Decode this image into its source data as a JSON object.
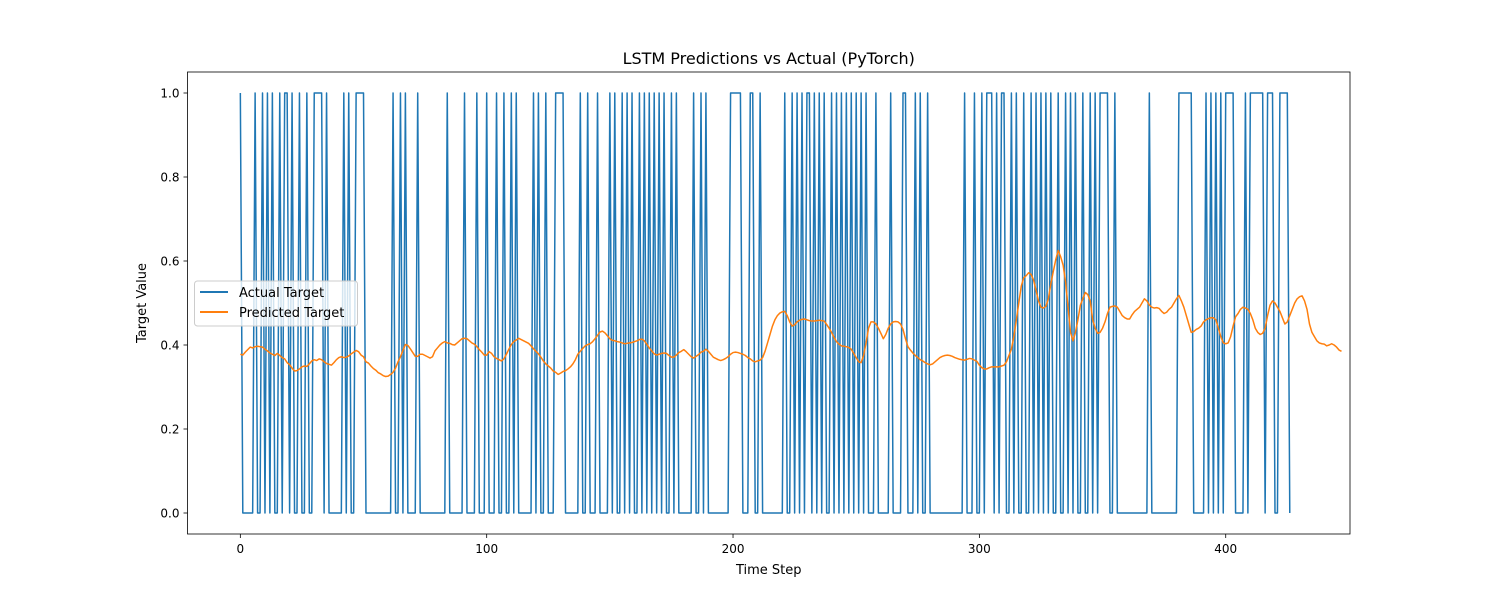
{
  "chart_data": {
    "type": "line",
    "title": "LSTM Predictions vs Actual (PyTorch)",
    "xlabel": "Time Step",
    "ylabel": "Target Value",
    "xlim": [
      -21.45,
      450.45
    ],
    "ylim": [
      -0.05,
      1.05
    ],
    "xticks": [
      0,
      100,
      200,
      300,
      400
    ],
    "yticks": [
      0.0,
      0.2,
      0.4,
      0.6,
      0.8,
      1.0
    ],
    "xtick_labels": [
      "0",
      "100",
      "200",
      "300",
      "400"
    ],
    "ytick_labels": [
      "0.0",
      "0.2",
      "0.4",
      "0.6",
      "0.8",
      "1.0"
    ],
    "grid": false,
    "legend": {
      "position": "center-left",
      "entries": [
        "Actual Target",
        "Predicted Target"
      ]
    },
    "series": [
      {
        "name": "Actual Target",
        "color": "#1f77b4",
        "x_start": 0,
        "values": [
          1,
          0,
          0,
          0,
          0,
          0,
          1,
          0,
          0,
          1,
          0,
          1,
          0,
          1,
          0,
          0,
          1,
          0,
          1,
          1,
          0,
          1,
          0,
          0,
          1,
          0,
          0,
          1,
          0,
          0,
          1,
          1,
          1,
          1,
          0,
          1,
          0,
          0,
          0,
          0,
          0,
          0,
          1,
          0,
          1,
          0,
          0,
          1,
          1,
          1,
          1,
          0,
          0,
          0,
          0,
          0,
          0,
          0,
          0,
          0,
          0,
          0,
          1,
          0,
          0,
          1,
          0,
          1,
          0,
          0,
          0,
          0,
          1,
          0,
          0,
          0,
          0,
          0,
          0,
          0,
          0,
          0,
          0,
          0,
          1,
          0,
          0,
          0,
          0,
          0,
          0,
          1,
          0,
          0,
          0,
          0,
          1,
          0,
          0,
          0,
          1,
          0,
          0,
          0,
          1,
          0,
          0,
          1,
          0,
          0,
          1,
          0,
          1,
          0,
          0,
          0,
          0,
          0,
          0,
          1,
          0,
          1,
          0,
          0,
          1,
          0,
          0,
          0,
          1,
          1,
          1,
          1,
          0,
          0,
          0,
          0,
          0,
          0,
          1,
          0,
          0,
          1,
          0,
          0,
          0,
          1,
          0,
          0,
          0,
          0,
          1,
          0,
          1,
          0,
          0,
          1,
          0,
          1,
          0,
          1,
          0,
          0,
          1,
          0,
          1,
          0,
          1,
          0,
          1,
          0,
          1,
          0,
          1,
          0,
          0,
          1,
          0,
          1,
          0,
          0,
          0,
          0,
          0,
          0,
          1,
          0,
          0,
          1,
          0,
          1,
          0,
          0,
          0,
          0,
          0,
          0,
          0,
          0,
          0,
          1,
          1,
          1,
          1,
          1,
          0,
          0,
          0,
          1,
          1,
          0,
          0,
          1,
          0,
          0,
          0,
          0,
          0,
          0,
          0,
          0,
          0,
          1,
          0,
          0,
          1,
          0,
          1,
          0,
          1,
          0,
          1,
          1,
          0,
          1,
          0,
          1,
          0,
          1,
          0,
          0,
          1,
          0,
          1,
          0,
          1,
          0,
          1,
          0,
          1,
          0,
          1,
          0,
          1,
          0,
          1,
          0,
          0,
          0,
          1,
          0,
          0,
          0,
          0,
          0,
          1,
          0,
          0,
          0,
          0,
          1,
          1,
          0,
          0,
          0,
          1,
          0,
          1,
          0,
          0,
          1,
          0,
          0,
          0,
          0,
          0,
          0,
          0,
          0,
          0,
          0,
          0,
          0,
          0,
          0,
          1,
          0,
          0,
          0,
          1,
          0,
          0,
          1,
          0,
          1,
          1,
          1,
          0,
          1,
          0,
          1,
          1,
          0,
          0,
          1,
          0,
          1,
          0,
          0,
          1,
          0,
          0,
          1,
          0,
          1,
          0,
          1,
          0,
          1,
          0,
          1,
          0,
          0,
          1,
          0,
          0,
          1,
          0,
          1,
          0,
          1,
          0,
          0,
          1,
          0,
          0,
          1,
          0,
          1,
          0,
          1,
          1,
          1,
          1,
          0,
          0,
          1,
          0,
          0,
          0,
          0,
          0,
          0,
          0,
          0,
          0,
          0,
          0,
          0,
          0,
          1,
          0,
          0,
          0,
          0,
          0,
          0,
          0,
          0,
          0,
          0,
          0,
          1,
          1,
          1,
          1,
          1,
          1,
          0,
          0,
          0,
          0,
          0,
          1,
          0,
          1,
          0,
          1,
          0,
          1,
          0,
          1,
          1,
          1,
          1,
          0,
          0,
          0,
          0,
          1,
          0,
          1,
          1,
          1,
          1,
          1,
          1,
          0,
          1,
          1,
          1,
          0,
          0,
          1,
          1,
          1,
          1,
          0
        ]
      },
      {
        "name": "Predicted Target",
        "color": "#ff7f0e",
        "x_start": 0,
        "values": [
          0.378,
          0.376,
          0.383,
          0.389,
          0.395,
          0.393,
          0.396,
          0.397,
          0.396,
          0.395,
          0.39,
          0.386,
          0.381,
          0.378,
          0.375,
          0.38,
          0.375,
          0.37,
          0.367,
          0.358,
          0.353,
          0.345,
          0.338,
          0.339,
          0.343,
          0.348,
          0.35,
          0.349,
          0.355,
          0.362,
          0.365,
          0.363,
          0.367,
          0.365,
          0.36,
          0.356,
          0.354,
          0.352,
          0.358,
          0.365,
          0.37,
          0.372,
          0.37,
          0.371,
          0.374,
          0.379,
          0.383,
          0.387,
          0.384,
          0.376,
          0.372,
          0.36,
          0.357,
          0.35,
          0.344,
          0.34,
          0.334,
          0.331,
          0.327,
          0.325,
          0.326,
          0.33,
          0.335,
          0.345,
          0.36,
          0.372,
          0.387,
          0.401,
          0.399,
          0.391,
          0.382,
          0.373,
          0.373,
          0.378,
          0.378,
          0.375,
          0.372,
          0.369,
          0.372,
          0.386,
          0.393,
          0.4,
          0.405,
          0.408,
          0.405,
          0.404,
          0.401,
          0.4,
          0.405,
          0.41,
          0.415,
          0.416,
          0.415,
          0.41,
          0.405,
          0.402,
          0.396,
          0.389,
          0.383,
          0.376,
          0.376,
          0.384,
          0.38,
          0.372,
          0.368,
          0.365,
          0.362,
          0.367,
          0.378,
          0.39,
          0.401,
          0.408,
          0.412,
          0.416,
          0.413,
          0.41,
          0.407,
          0.404,
          0.398,
          0.391,
          0.385,
          0.379,
          0.371,
          0.362,
          0.355,
          0.35,
          0.345,
          0.338,
          0.335,
          0.33,
          0.333,
          0.337,
          0.339,
          0.343,
          0.348,
          0.355,
          0.365,
          0.378,
          0.385,
          0.392,
          0.398,
          0.401,
          0.403,
          0.408,
          0.415,
          0.423,
          0.431,
          0.433,
          0.429,
          0.422,
          0.415,
          0.411,
          0.41,
          0.408,
          0.407,
          0.405,
          0.403,
          0.404,
          0.405,
          0.406,
          0.408,
          0.41,
          0.413,
          0.414,
          0.41,
          0.402,
          0.393,
          0.386,
          0.379,
          0.376,
          0.378,
          0.38,
          0.381,
          0.38,
          0.375,
          0.371,
          0.371,
          0.376,
          0.382,
          0.385,
          0.389,
          0.384,
          0.378,
          0.372,
          0.369,
          0.373,
          0.377,
          0.383,
          0.385,
          0.39,
          0.385,
          0.378,
          0.371,
          0.368,
          0.365,
          0.363,
          0.365,
          0.368,
          0.372,
          0.378,
          0.382,
          0.383,
          0.382,
          0.38,
          0.378,
          0.375,
          0.37,
          0.367,
          0.362,
          0.36,
          0.362,
          0.364,
          0.37,
          0.385,
          0.405,
          0.425,
          0.445,
          0.46,
          0.47,
          0.476,
          0.479,
          0.48,
          0.47,
          0.455,
          0.445,
          0.448,
          0.455,
          0.459,
          0.461,
          0.462,
          0.46,
          0.458,
          0.457,
          0.457,
          0.458,
          0.459,
          0.458,
          0.457,
          0.449,
          0.44,
          0.43,
          0.418,
          0.408,
          0.402,
          0.398,
          0.397,
          0.396,
          0.394,
          0.39,
          0.38,
          0.37,
          0.36,
          0.358,
          0.375,
          0.405,
          0.44,
          0.455,
          0.455,
          0.45,
          0.44,
          0.428,
          0.415,
          0.425,
          0.44,
          0.45,
          0.455,
          0.456,
          0.455,
          0.45,
          0.437,
          0.415,
          0.396,
          0.388,
          0.381,
          0.375,
          0.37,
          0.365,
          0.362,
          0.358,
          0.355,
          0.353,
          0.355,
          0.36,
          0.365,
          0.37,
          0.373,
          0.375,
          0.376,
          0.375,
          0.373,
          0.37,
          0.368,
          0.366,
          0.365,
          0.364,
          0.366,
          0.368,
          0.367,
          0.364,
          0.361,
          0.352,
          0.346,
          0.343,
          0.343,
          0.346,
          0.348,
          0.348,
          0.348,
          0.348,
          0.35,
          0.352,
          0.36,
          0.375,
          0.39,
          0.42,
          0.46,
          0.5,
          0.54,
          0.56,
          0.565,
          0.572,
          0.568,
          0.555,
          0.53,
          0.505,
          0.49,
          0.488,
          0.492,
          0.51,
          0.545,
          0.575,
          0.603,
          0.625,
          0.61,
          0.59,
          0.55,
          0.49,
          0.43,
          0.41,
          0.43,
          0.46,
          0.495,
          0.51,
          0.525,
          0.52,
          0.505,
          0.46,
          0.44,
          0.428,
          0.43,
          0.44,
          0.455,
          0.475,
          0.49,
          0.492,
          0.493,
          0.49,
          0.48,
          0.47,
          0.465,
          0.462,
          0.462,
          0.472,
          0.48,
          0.485,
          0.49,
          0.5,
          0.51,
          0.505,
          0.495,
          0.49,
          0.488,
          0.489,
          0.487,
          0.48,
          0.475,
          0.478,
          0.485,
          0.49,
          0.5,
          0.51,
          0.518,
          0.505,
          0.49,
          0.47,
          0.45,
          0.43,
          0.432,
          0.437,
          0.44,
          0.445,
          0.455,
          0.46,
          0.463,
          0.465,
          0.465,
          0.46,
          0.44,
          0.42,
          0.405,
          0.403,
          0.405,
          0.42,
          0.445,
          0.467,
          0.475,
          0.485,
          0.49,
          0.488,
          0.485,
          0.475,
          0.46,
          0.44,
          0.43,
          0.425,
          0.428,
          0.44,
          0.47,
          0.495,
          0.505,
          0.5,
          0.49,
          0.48,
          0.465,
          0.45,
          0.455,
          0.47,
          0.485,
          0.5,
          0.51,
          0.515,
          0.517,
          0.505,
          0.485,
          0.45,
          0.43,
          0.42,
          0.41,
          0.405,
          0.403,
          0.402,
          0.398,
          0.4,
          0.403,
          0.4,
          0.395,
          0.388,
          0.385
        ]
      }
    ]
  }
}
